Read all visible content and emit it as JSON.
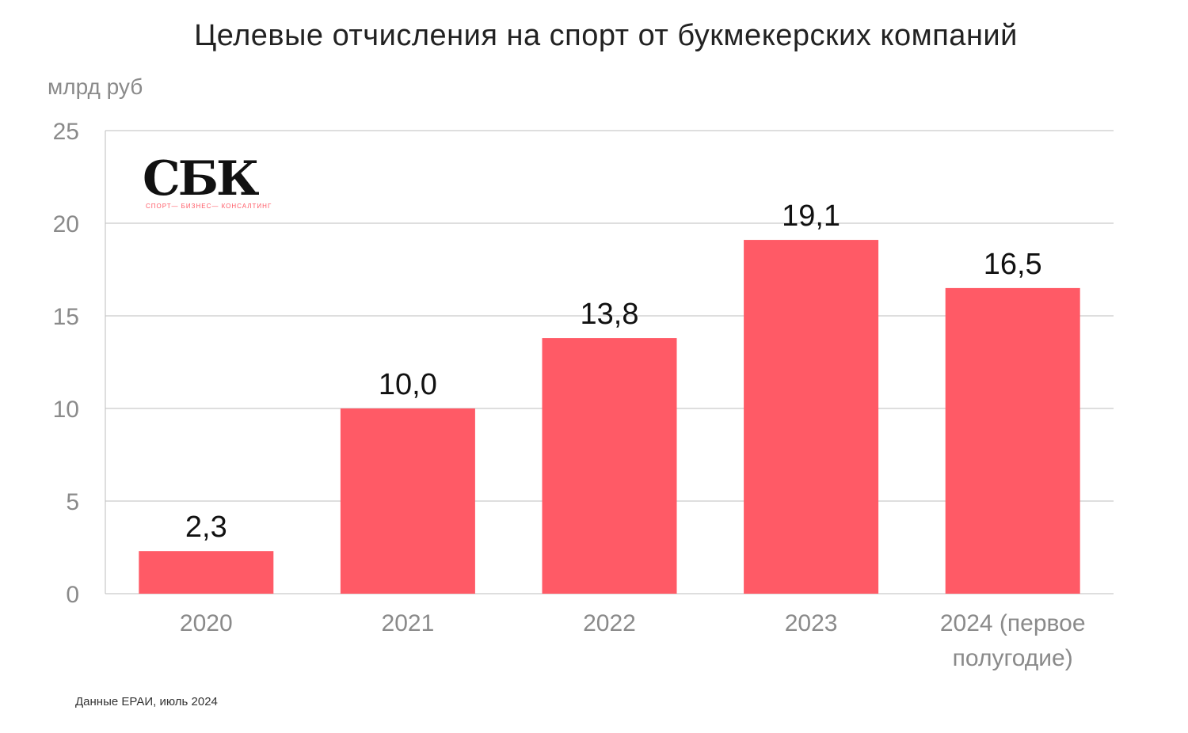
{
  "title": "Целевые отчисления на спорт от букмекерских компаний",
  "unit_label": "млрд руб",
  "source": "Данные ЕРАИ, июль 2024",
  "logo": {
    "mark": "СБК",
    "subtitle": "СПОРТ— БИЗНЕС— КОНСАЛТИНГ",
    "accent_color": "#ff5a66"
  },
  "chart_data": {
    "type": "bar",
    "categories": [
      "2020",
      "2021",
      "2022",
      "2023",
      "2024 (первое полугодие)"
    ],
    "category_lines": [
      [
        "2020"
      ],
      [
        "2021"
      ],
      [
        "2022"
      ],
      [
        "2023"
      ],
      [
        "2024 (первое",
        "полугодие)"
      ]
    ],
    "values": [
      2.3,
      10.0,
      13.8,
      19.1,
      16.5
    ],
    "value_labels": [
      "2,3",
      "10,0",
      "13,8",
      "19,1",
      "16,5"
    ],
    "title": "Целевые отчисления на спорт от букмекерских компаний",
    "xlabel": "",
    "ylabel": "млрд руб",
    "ylim": [
      0,
      25
    ],
    "yticks": [
      0,
      5,
      10,
      15,
      20,
      25
    ],
    "grid": true,
    "bar_color": "#ff5a66",
    "grid_color": "#bdbdbd"
  }
}
